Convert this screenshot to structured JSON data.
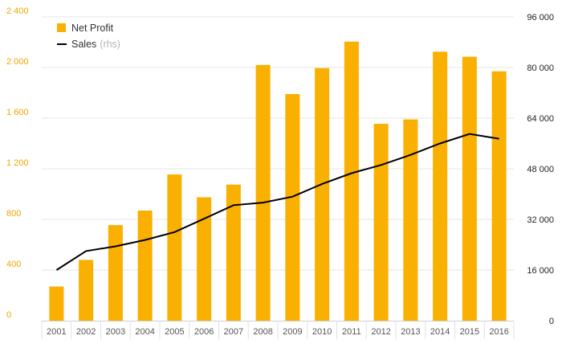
{
  "chart_data": {
    "type": "bar",
    "categories": [
      "2001",
      "2002",
      "2003",
      "2004",
      "2005",
      "2006",
      "2007",
      "2008",
      "2009",
      "2010",
      "2011",
      "2012",
      "2013",
      "2014",
      "2015",
      "2016"
    ],
    "series": [
      {
        "name": "Net Profit",
        "type": "bar",
        "axis": "left",
        "values": [
          270,
          480,
          755,
          870,
          1155,
          975,
          1075,
          2020,
          1790,
          1995,
          2205,
          1555,
          1590,
          2125,
          2085,
          1970
        ]
      },
      {
        "name": "Sales",
        "name_suffix": "(rhs)",
        "type": "line",
        "axis": "right",
        "values": [
          16000,
          22000,
          23500,
          25500,
          28000,
          32200,
          36500,
          37300,
          39200,
          43200,
          46600,
          49200,
          52400,
          56000,
          59000,
          57500
        ]
      }
    ],
    "y_left": {
      "ylim": [
        0,
        2400
      ],
      "ticks": [
        0,
        400,
        800,
        1200,
        1600,
        2000,
        2400
      ],
      "tick_labels": [
        "0",
        "400",
        "800",
        "1 200",
        "1 600",
        "2 000",
        "2 400"
      ]
    },
    "y_right": {
      "ylim": [
        0,
        96000
      ],
      "ticks": [
        0,
        16000,
        32000,
        48000,
        64000,
        80000,
        96000
      ],
      "tick_labels": [
        "0",
        "16 000",
        "32 000",
        "48 000",
        "64 000",
        "80 000",
        "96 000"
      ]
    },
    "title": "",
    "xlabel": "",
    "ylabel": "",
    "grid": true,
    "legend_position": "top-left",
    "colors": {
      "bar": "#f9b000",
      "line": "#000000",
      "left_tick": "#f0a500",
      "right_tick": "#222222",
      "grid": "#e6e6e6"
    }
  }
}
